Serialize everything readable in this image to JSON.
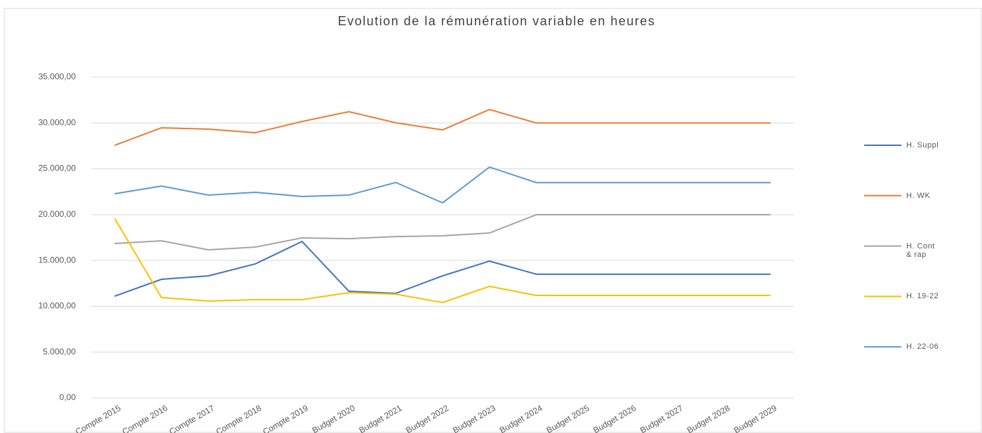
{
  "chart_data": {
    "type": "line",
    "title": "Evolution de la rémunération variable en heures",
    "categories": [
      "Compte 2015",
      "Compte 2016",
      "Compte 2017",
      "Compte 2018",
      "Compte 2019",
      "Budget 2020",
      "Budget 2021",
      "Budget 2022",
      "Budget 2023",
      "Budget 2024",
      "Budget 2025",
      "Budget 2026",
      "Budget 2027",
      "Budget 2028",
      "Budget 2029"
    ],
    "series": [
      {
        "name": "H. Suppl",
        "color": "#4472c4",
        "values": [
          11100,
          12940,
          13320,
          14620,
          17070,
          11640,
          11410,
          13320,
          14930,
          13500,
          13500,
          13500,
          13500,
          13500,
          13500
        ]
      },
      {
        "name": "H. WK",
        "color": "#ed7d31",
        "values": [
          27560,
          29480,
          29330,
          28940,
          30170,
          31240,
          30020,
          29250,
          31470,
          30000,
          30000,
          30000,
          30000,
          30000,
          30000
        ]
      },
      {
        "name": "H. Cont & rap",
        "color": "#a5a5a5",
        "values": [
          16850,
          17150,
          16160,
          16460,
          17460,
          17380,
          17610,
          17690,
          18000,
          20000,
          20000,
          20000,
          20000,
          20000,
          20000
        ]
      },
      {
        "name": "H. 19-22",
        "color": "#ffc000",
        "values": [
          19600,
          10950,
          10570,
          10720,
          10720,
          11490,
          11330,
          10410,
          12180,
          11180,
          11180,
          11180,
          11180,
          11180,
          11180
        ]
      },
      {
        "name": "H. 22-06",
        "color": "#5b9bd5",
        "values": [
          22280,
          23120,
          22130,
          22440,
          21980,
          22130,
          23510,
          21290,
          25190,
          23500,
          23500,
          23500,
          23500,
          23500,
          23500
        ]
      }
    ],
    "ylim": [
      0,
      35000
    ],
    "yticks": [
      {
        "value": 0,
        "label": "0,00"
      },
      {
        "value": 5000,
        "label": "5.000,00"
      },
      {
        "value": 10000,
        "label": "10.000,00"
      },
      {
        "value": 15000,
        "label": "15.000,00"
      },
      {
        "value": 20000,
        "label": "20.000,00"
      },
      {
        "value": 25000,
        "label": "25.000,00"
      },
      {
        "value": 30000,
        "label": "30.000,00"
      },
      {
        "value": 35000,
        "label": "35.000,00"
      }
    ],
    "grid": true,
    "legend": "right"
  }
}
